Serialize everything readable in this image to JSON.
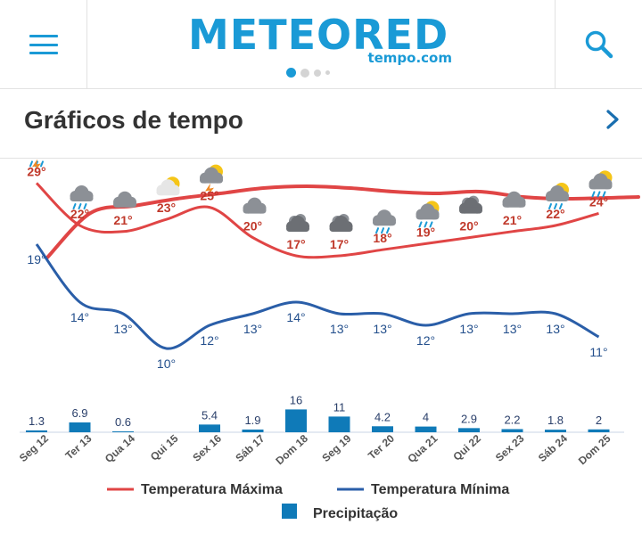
{
  "header": {
    "menu_icon": "hamburger-icon",
    "logo_text": "METEORED",
    "logo_sub": "tempo.com",
    "search_icon": "search-icon",
    "carousel_dots": 4,
    "carousel_active": 0
  },
  "section": {
    "title": "Gráficos de tempo",
    "chevron_icon": "chevron-right-icon"
  },
  "colors": {
    "brand": "#1a9ad6",
    "max_line": "#e04545",
    "max_label": "#c0392b",
    "min_line": "#2a5ea8",
    "min_label": "#234f8c",
    "precip": "#0f7ab8"
  },
  "chart_data": {
    "type": "line",
    "categories": [
      "Seg 12",
      "Ter 13",
      "Qua 14",
      "Qui 15",
      "Sex 16",
      "Sáb 17",
      "Dom 18",
      "Seg 19",
      "Ter 20",
      "Qua 21",
      "Qui 22",
      "Sex 23",
      "Sáb 24",
      "Dom 25"
    ],
    "series": [
      {
        "name": "Temperatura Máxima",
        "values": [
          29,
          22,
          21,
          23,
          25,
          20,
          17,
          17,
          18,
          19,
          20,
          21,
          22,
          24
        ],
        "unit": "°"
      },
      {
        "name": "Temperatura Mínima",
        "values": [
          19,
          14,
          13,
          10,
          12,
          13,
          14,
          13,
          13,
          12,
          13,
          13,
          13,
          11
        ],
        "unit": "°"
      },
      {
        "name": "Precipitação",
        "type": "bar",
        "values": [
          1.3,
          6.9,
          0.6,
          0,
          5.4,
          1.9,
          16,
          11,
          4.2,
          4,
          2.9,
          2.2,
          1.8,
          2
        ],
        "labels": [
          "1.3",
          "6.9",
          "0.6",
          "",
          "5.4",
          "1.9",
          "16",
          "11",
          "4.2",
          "4",
          "2.9",
          "2.2",
          "1.8",
          "2"
        ]
      }
    ],
    "weather_icons": [
      "thunder-rain",
      "rain",
      "cloudy",
      "sun-cloud",
      "thunder-sun",
      "cloudy",
      "overcast",
      "overcast",
      "rain",
      "rain-sun",
      "overcast",
      "cloudy",
      "rain-sun",
      "rain-sun"
    ],
    "legend": [
      {
        "label": "Temperatura Máxima",
        "kind": "line",
        "color": "#e04545"
      },
      {
        "label": "Temperatura Mínima",
        "kind": "line",
        "color": "#2a5ea8"
      },
      {
        "label": "Precipitação",
        "kind": "box",
        "color": "#0f7ab8"
      }
    ],
    "legend_position": "bottom",
    "grid": false
  }
}
